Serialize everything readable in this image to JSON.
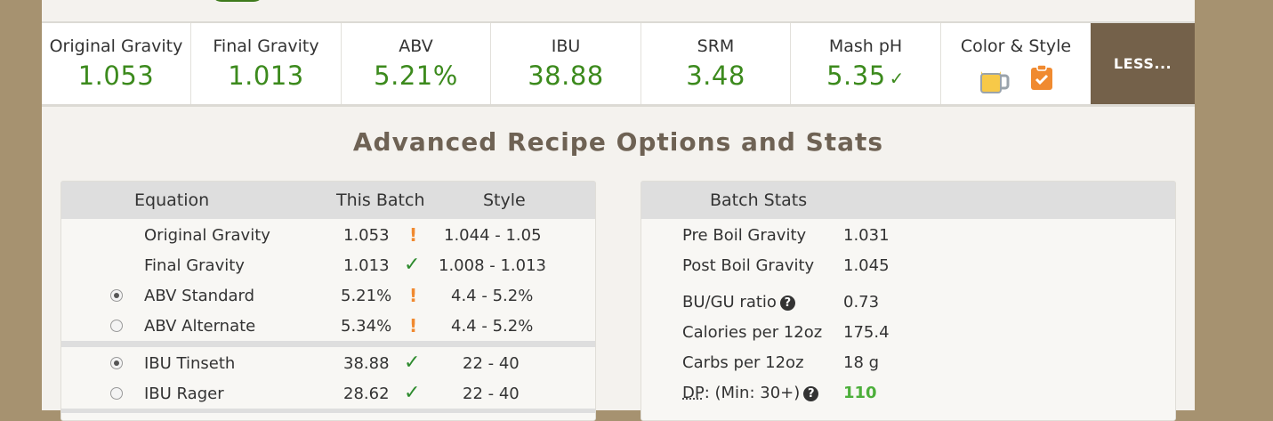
{
  "stats": [
    {
      "label": "Original Gravity",
      "value": "1.053"
    },
    {
      "label": "Final Gravity",
      "value": "1.013"
    },
    {
      "label": "ABV",
      "value": "5.21%"
    },
    {
      "label": "IBU",
      "value": "38.88"
    },
    {
      "label": "SRM",
      "value": "3.48"
    },
    {
      "label": "Mash pH",
      "value": "5.35",
      "check": "✓"
    },
    {
      "label": "Color & Style"
    }
  ],
  "less_label": "LESS...",
  "advanced_title": "Advanced Recipe Options and Stats",
  "equation_table": {
    "headers": {
      "equation": "Equation",
      "this_batch": "This Batch",
      "style": "Style"
    },
    "rows": [
      {
        "name": "Original Gravity",
        "value": "1.053",
        "status": "!",
        "range": "1.044 - 1.05"
      },
      {
        "name": "Final Gravity",
        "value": "1.013",
        "status": "✓",
        "range": "1.008 - 1.013"
      },
      {
        "name": "ABV Standard",
        "value": "5.21%",
        "status": "!",
        "range": "4.4 - 5.2%",
        "selected": true
      },
      {
        "name": "ABV Alternate",
        "value": "5.34%",
        "status": "!",
        "range": "4.4 - 5.2%",
        "selected": false
      },
      {
        "name": "IBU Tinseth",
        "value": "38.88",
        "status": "✓",
        "range": "22 - 40",
        "selected": true
      },
      {
        "name": "IBU Rager",
        "value": "28.62",
        "status": "✓",
        "range": "22 - 40",
        "selected": false
      }
    ]
  },
  "batch_stats": {
    "header": "Batch Stats",
    "rows": [
      {
        "name": "Pre Boil Gravity",
        "value": "1.031"
      },
      {
        "name": "Post Boil Gravity",
        "value": "1.045"
      },
      {
        "name": "BU/GU ratio",
        "value": "0.73"
      },
      {
        "name": "Calories per 12oz",
        "value": "175.4"
      },
      {
        "name": "Carbs per 12oz",
        "value": "18 g"
      },
      {
        "name_prefix": "DP",
        "name_suffix": ": (Min: 30+)",
        "value": "110"
      }
    ]
  },
  "colors": {
    "good": "#3c8a1d",
    "warn": "#f08a30",
    "button": "#74614a",
    "page_bg": "#a69270"
  }
}
